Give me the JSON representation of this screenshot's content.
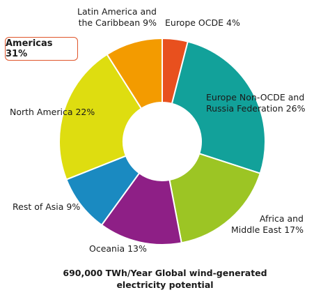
{
  "chart_data": {
    "type": "pie",
    "donut": true,
    "categories": [
      "Europe OCDE",
      "Europe Non-OCDE and Russia Federation",
      "Africa and Middle East",
      "Oceania",
      "Rest of Asia",
      "North America",
      "Latin America and the Caribbean"
    ],
    "values": [
      4,
      26,
      17,
      13,
      9,
      22,
      9
    ],
    "colors": [
      "#e8501e",
      "#12a19a",
      "#9cc524",
      "#8e1f86",
      "#1a8ac1",
      "#dedd10",
      "#f39b00"
    ],
    "slices": [
      {
        "label_lines": [
          "Europe OCDE 4%"
        ]
      },
      {
        "label_lines": [
          "Europe Non-OCDE and",
          "Russia Federation  26%"
        ]
      },
      {
        "label_lines": [
          "Africa and",
          "Middle East  17%"
        ]
      },
      {
        "label_lines": [
          "Oceania 13%"
        ]
      },
      {
        "label_lines": [
          "Rest of Asia  9%"
        ]
      },
      {
        "label_lines": [
          "North America 22%"
        ]
      },
      {
        "label_lines": [
          "Latin America and",
          "the Caribbean 9%"
        ]
      }
    ],
    "caption_lines": [
      "690,000 TWh/Year Global wind-generated",
      "electricity potential"
    ],
    "callout": "Americas 31%"
  }
}
